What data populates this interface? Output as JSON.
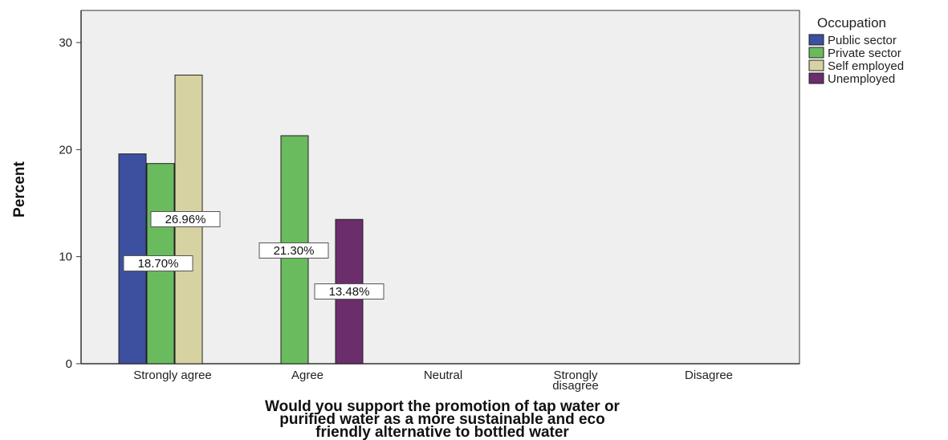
{
  "chart_data": {
    "type": "bar",
    "title": "",
    "xlabel": "Would you support the promotion of tap water or purified water as a more sustainable and eco friendly alternative to bottled water",
    "xlabel_lines": [
      "Would you support the promotion of tap water or",
      "purified water as a more sustainable and eco",
      "friendly alternative to bottled water"
    ],
    "ylabel": "Percent",
    "ylim": [
      0,
      33
    ],
    "yticks": [
      0,
      10,
      20,
      30
    ],
    "categories": [
      "Strongly agree",
      "Agree",
      "Neutral",
      "Strongly disagree",
      "Disagree"
    ],
    "category_lines": [
      [
        "Strongly agree"
      ],
      [
        "Agree"
      ],
      [
        "Neutral"
      ],
      [
        "Strongly",
        "disagree"
      ],
      [
        "Disagree"
      ]
    ],
    "legend": {
      "title": "Occupation",
      "placement": "top-right outside"
    },
    "grid": false,
    "series": [
      {
        "name": "Public sector",
        "color": "#3d4f9f",
        "values": [
          19.6,
          null,
          null,
          null,
          null
        ]
      },
      {
        "name": "Private sector",
        "color": "#6aba5e",
        "values": [
          18.7,
          21.3,
          null,
          null,
          null
        ]
      },
      {
        "name": "Self employed",
        "color": "#d6d2a2",
        "values": [
          26.96,
          null,
          null,
          null,
          null
        ]
      },
      {
        "name": "Unemployed",
        "color": "#6b2d6c",
        "values": [
          null,
          null,
          null,
          null,
          null
        ]
      },
      {
        "name": "Unemployed",
        "color": "#6b2d6c",
        "values": [
          null,
          13.48,
          null,
          null,
          null
        ]
      }
    ],
    "data_labels": [
      {
        "text": "26.96%",
        "category": "Strongly agree",
        "series": "Self employed"
      },
      {
        "text": "18.70%",
        "category": "Strongly agree",
        "series": "Private sector"
      },
      {
        "text": "21.30%",
        "category": "Agree",
        "series": "Private sector"
      },
      {
        "text": "13.48%",
        "category": "Agree",
        "series": "Unemployed"
      }
    ]
  },
  "colors": {
    "plot_background": "#efefef",
    "axis": "#333333"
  }
}
